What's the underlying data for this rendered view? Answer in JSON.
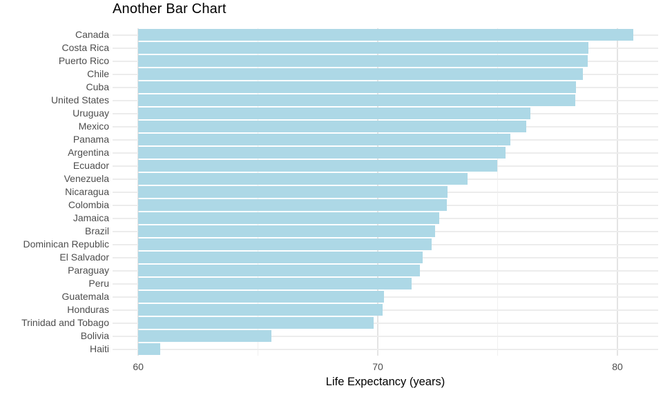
{
  "chart_data": {
    "type": "bar",
    "orientation": "horizontal",
    "title": "Another Bar Chart",
    "xlabel": "Life Expectancy (years)",
    "ylabel": "",
    "categories": [
      "Canada",
      "Costa Rica",
      "Puerto Rico",
      "Chile",
      "Cuba",
      "United States",
      "Uruguay",
      "Mexico",
      "Panama",
      "Argentina",
      "Ecuador",
      "Venezuela",
      "Nicaragua",
      "Colombia",
      "Jamaica",
      "Brazil",
      "Dominican Republic",
      "El Salvador",
      "Paraguay",
      "Peru",
      "Guatemala",
      "Honduras",
      "Trinidad and Tobago",
      "Bolivia",
      "Haiti"
    ],
    "values": [
      80.65,
      78.78,
      78.75,
      78.55,
      78.27,
      78.24,
      76.38,
      76.2,
      75.54,
      75.32,
      74.99,
      73.75,
      72.9,
      72.89,
      72.57,
      72.39,
      72.24,
      71.88,
      71.75,
      71.42,
      70.26,
      70.2,
      69.82,
      65.55,
      60.92
    ],
    "bar_start": 60,
    "x_ticks": [
      60,
      70,
      80
    ],
    "x_minor_ticks": [
      65,
      75
    ],
    "xlim": [
      58.93,
      81.7
    ],
    "grid": "major-and-minor",
    "legend_position": "none",
    "colors": {
      "bar_fill": "#ADD8E6",
      "grid_major": "#e4e4e4",
      "grid_minor": "#f0f0f0",
      "grid_row": "#ececec",
      "axis_text": "#4d4d4d",
      "title_text": "#000000",
      "background": "#ffffff"
    }
  }
}
